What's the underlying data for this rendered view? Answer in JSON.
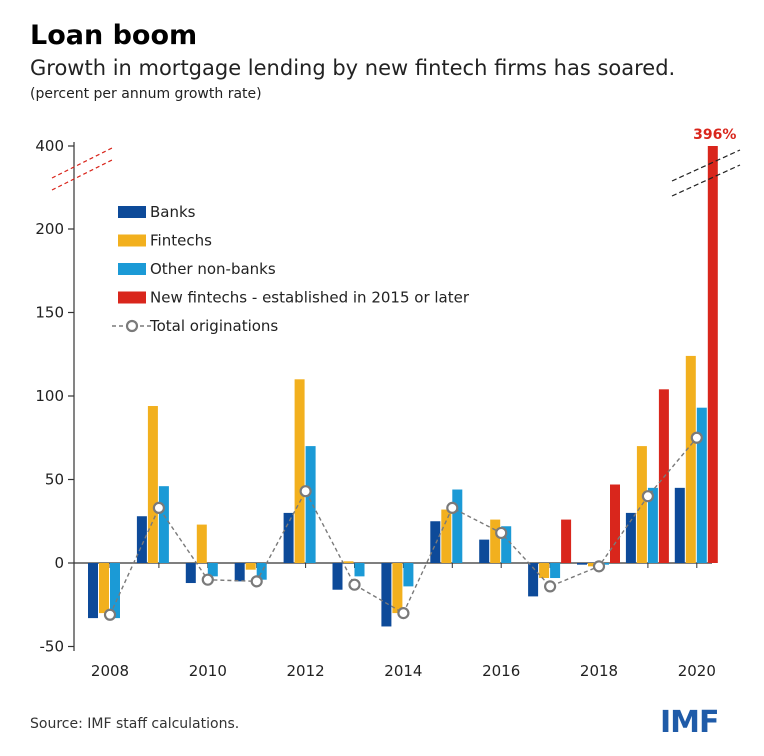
{
  "header": {
    "title": "Loan boom",
    "subtitle": "Growth in mortgage lending by new fintech firms has soared.",
    "unit": "(percent per annum growth rate)"
  },
  "footer": {
    "source": "Source: IMF staff calculations.",
    "logo_text": "IMF"
  },
  "colors": {
    "banks": "#0d4a99",
    "fintechs": "#f2b01e",
    "other_nonbanks": "#1b9ad6",
    "new_fintechs": "#d9261c",
    "total": "#7a7a7a",
    "axis": "#333333"
  },
  "chart_data": {
    "type": "bar",
    "title": "Loan boom",
    "subtitle": "Growth in mortgage lending by new fintech firms has soared.",
    "ylabel": "(percent per annum growth rate)",
    "xlabel": "",
    "categories": [
      "2008",
      "2009",
      "2010",
      "2011",
      "2012",
      "2013",
      "2014",
      "2015",
      "2016",
      "2017",
      "2018",
      "2019",
      "2020"
    ],
    "x_tick_labels": [
      "2008",
      "2010",
      "2012",
      "2014",
      "2016",
      "2018",
      "2020"
    ],
    "y_tick_labels": [
      "-50",
      "0",
      "50",
      "100",
      "150",
      "200",
      "400"
    ],
    "y_axis_break": true,
    "ylim": [
      -50,
      400
    ],
    "legend_position": "upper-left",
    "series": [
      {
        "name": "Banks",
        "key": "banks",
        "values": [
          -33,
          28,
          -12,
          -11,
          30,
          -16,
          -38,
          25,
          14,
          -20,
          -1,
          30,
          45
        ]
      },
      {
        "name": "Fintechs",
        "key": "fintechs",
        "values": [
          -30,
          94,
          23,
          -4,
          110,
          1,
          -30,
          32,
          26,
          -9,
          -2,
          70,
          124
        ]
      },
      {
        "name": "Other non-banks",
        "key": "other_nonbanks",
        "values": [
          -33,
          46,
          -8,
          -10,
          70,
          -8,
          -14,
          44,
          22,
          -9,
          -1,
          45,
          93
        ]
      },
      {
        "name": "New fintechs - established in 2015 or later",
        "key": "new_fintechs",
        "values": [
          null,
          null,
          null,
          null,
          null,
          null,
          null,
          null,
          null,
          26,
          47,
          104,
          396
        ]
      },
      {
        "name": "Total originations",
        "key": "total",
        "type": "line",
        "values": [
          -31,
          33,
          -10,
          -11,
          43,
          -13,
          -30,
          33,
          18,
          -14,
          -2,
          40,
          75
        ]
      }
    ],
    "annotations": [
      {
        "text": "396%",
        "category": "2020",
        "series": "New fintechs - established in 2015 or later"
      }
    ]
  }
}
